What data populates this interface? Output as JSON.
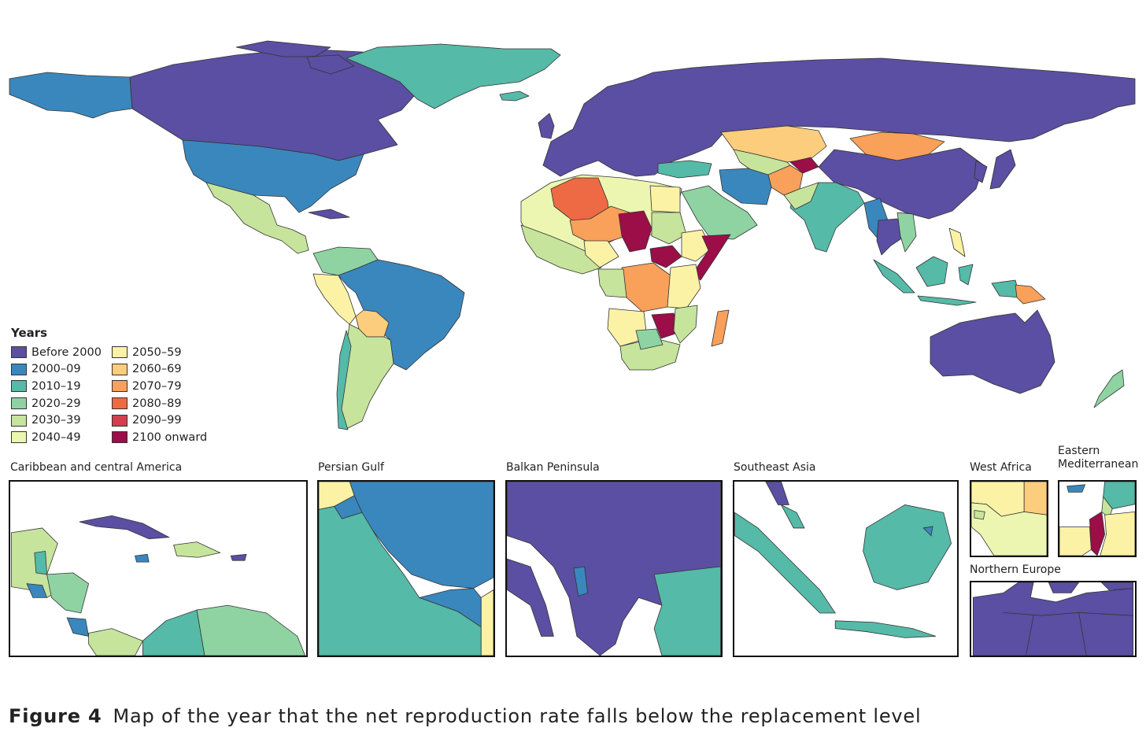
{
  "legend": {
    "title": "Years",
    "items": [
      {
        "label": "Before 2000",
        "color": "#5a4fa2"
      },
      {
        "label": "2000–09",
        "color": "#3a87bd"
      },
      {
        "label": "2010–19",
        "color": "#55baa7"
      },
      {
        "label": "2020–29",
        "color": "#8fd3a3"
      },
      {
        "label": "2030–39",
        "color": "#c6e49c"
      },
      {
        "label": "2040–49",
        "color": "#ecf6b0"
      },
      {
        "label": "2050–59",
        "color": "#fbf2a6"
      },
      {
        "label": "2060–69",
        "color": "#fccd7c"
      },
      {
        "label": "2070–79",
        "color": "#f9a05a"
      },
      {
        "label": "2080–89",
        "color": "#ee6a44"
      },
      {
        "label": "2090–99",
        "color": "#d23f4e"
      },
      {
        "label": "2100 onward",
        "color": "#9b0e48"
      }
    ]
  },
  "insets": [
    {
      "title": "Caribbean and central America"
    },
    {
      "title": "Persian Gulf"
    },
    {
      "title": "Balkan Peninsula"
    },
    {
      "title": "Southeast Asia"
    },
    {
      "title": "West Africa"
    },
    {
      "title": "Eastern Mediterranean"
    },
    {
      "title": "Northern Europe"
    }
  ],
  "caption": {
    "label": "Figure 4",
    "text": "Map of the year that the net reproduction rate falls below the replacement level"
  }
}
